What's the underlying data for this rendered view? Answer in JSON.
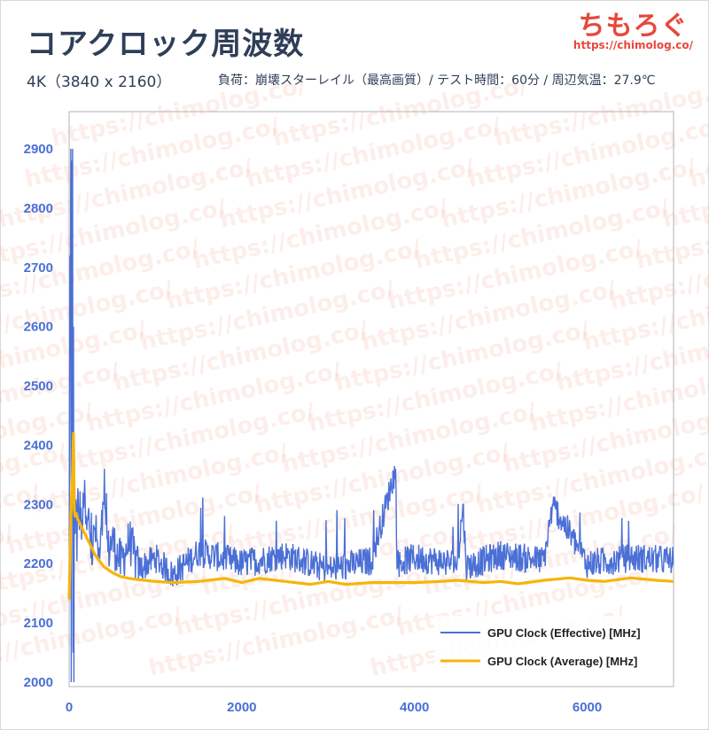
{
  "header": {
    "title": "コアクロック周波数",
    "subtitle_left": "4K（3840 x 2160）",
    "subtitle_right": "負荷：崩壊スターレイル（最高画質）/ テスト時間：60分 / 周辺気温：27.9℃"
  },
  "logo": {
    "name": "ちもろぐ",
    "url": "https://chimolog.co/"
  },
  "watermark_text": "https://chimolog.co/",
  "colors": {
    "effective": "#4a6fd6",
    "average": "#f5b50a",
    "axis_labels": "#4a6fd6",
    "title": "#2f3e58",
    "logo": "#e8473d"
  },
  "chart_data": {
    "type": "line",
    "title": "コアクロック周波数",
    "xlabel": "",
    "ylabel": "",
    "xlim": [
      0,
      7000
    ],
    "ylim": [
      2000,
      2950
    ],
    "xticks": [
      0,
      2000,
      4000,
      6000
    ],
    "yticks": [
      2000,
      2100,
      2200,
      2300,
      2400,
      2500,
      2600,
      2700,
      2800,
      2900
    ],
    "grid": false,
    "legend_position": "bottom-right",
    "series": [
      {
        "name": "GPU Clock (Effective) [MHz]",
        "color": "#4a6fd6",
        "points": [
          [
            0,
            2140
          ],
          [
            5,
            2450
          ],
          [
            10,
            2720
          ],
          [
            15,
            2650
          ],
          [
            20,
            2900
          ],
          [
            25,
            2000
          ],
          [
            30,
            2880
          ],
          [
            35,
            2400
          ],
          [
            40,
            2900
          ],
          [
            45,
            2050
          ],
          [
            50,
            2600
          ],
          [
            55,
            2000
          ],
          [
            60,
            2400
          ],
          [
            65,
            2300
          ],
          [
            70,
            2250
          ],
          [
            80,
            2310
          ],
          [
            90,
            2230
          ],
          [
            100,
            2320
          ],
          [
            110,
            2260
          ],
          [
            130,
            2300
          ],
          [
            150,
            2240
          ],
          [
            170,
            2330
          ],
          [
            200,
            2250
          ],
          [
            230,
            2280
          ],
          [
            260,
            2210
          ],
          [
            300,
            2260
          ],
          [
            350,
            2200
          ],
          [
            400,
            2300
          ],
          [
            450,
            2220
          ],
          [
            500,
            2240
          ],
          [
            600,
            2200
          ],
          [
            700,
            2240
          ],
          [
            800,
            2190
          ],
          [
            1000,
            2210
          ],
          [
            1200,
            2180
          ],
          [
            1500,
            2220
          ],
          [
            2000,
            2200
          ],
          [
            2500,
            2215
          ],
          [
            3000,
            2190
          ],
          [
            3500,
            2205
          ],
          [
            3780,
            2360
          ],
          [
            3800,
            2200
          ],
          [
            4000,
            2210
          ],
          [
            4500,
            2200
          ],
          [
            4560,
            2300
          ],
          [
            4600,
            2195
          ],
          [
            5000,
            2215
          ],
          [
            5500,
            2205
          ],
          [
            5600,
            2300
          ],
          [
            6000,
            2200
          ],
          [
            6500,
            2210
          ],
          [
            7000,
            2205
          ]
        ]
      },
      {
        "name": "GPU Clock (Average) [MHz]",
        "color": "#f5b50a",
        "points": [
          [
            0,
            2140
          ],
          [
            10,
            2200
          ],
          [
            20,
            2280
          ],
          [
            30,
            2320
          ],
          [
            40,
            2355
          ],
          [
            50,
            2420
          ],
          [
            60,
            2290
          ],
          [
            70,
            2280
          ],
          [
            80,
            2285
          ],
          [
            100,
            2275
          ],
          [
            150,
            2260
          ],
          [
            200,
            2245
          ],
          [
            250,
            2230
          ],
          [
            300,
            2215
          ],
          [
            400,
            2195
          ],
          [
            500,
            2185
          ],
          [
            600,
            2178
          ],
          [
            700,
            2175
          ],
          [
            800,
            2173
          ],
          [
            1000,
            2170
          ],
          [
            1200,
            2168
          ],
          [
            1500,
            2170
          ],
          [
            1800,
            2175
          ],
          [
            2000,
            2168
          ],
          [
            2200,
            2175
          ],
          [
            2500,
            2170
          ],
          [
            2800,
            2165
          ],
          [
            3000,
            2170
          ],
          [
            3200,
            2165
          ],
          [
            3500,
            2168
          ],
          [
            4000,
            2168
          ],
          [
            4300,
            2170
          ],
          [
            4500,
            2172
          ],
          [
            4800,
            2168
          ],
          [
            5000,
            2170
          ],
          [
            5200,
            2166
          ],
          [
            5500,
            2172
          ],
          [
            5800,
            2176
          ],
          [
            6000,
            2172
          ],
          [
            6200,
            2170
          ],
          [
            6500,
            2176
          ],
          [
            6800,
            2172
          ],
          [
            7000,
            2170
          ]
        ]
      }
    ]
  }
}
